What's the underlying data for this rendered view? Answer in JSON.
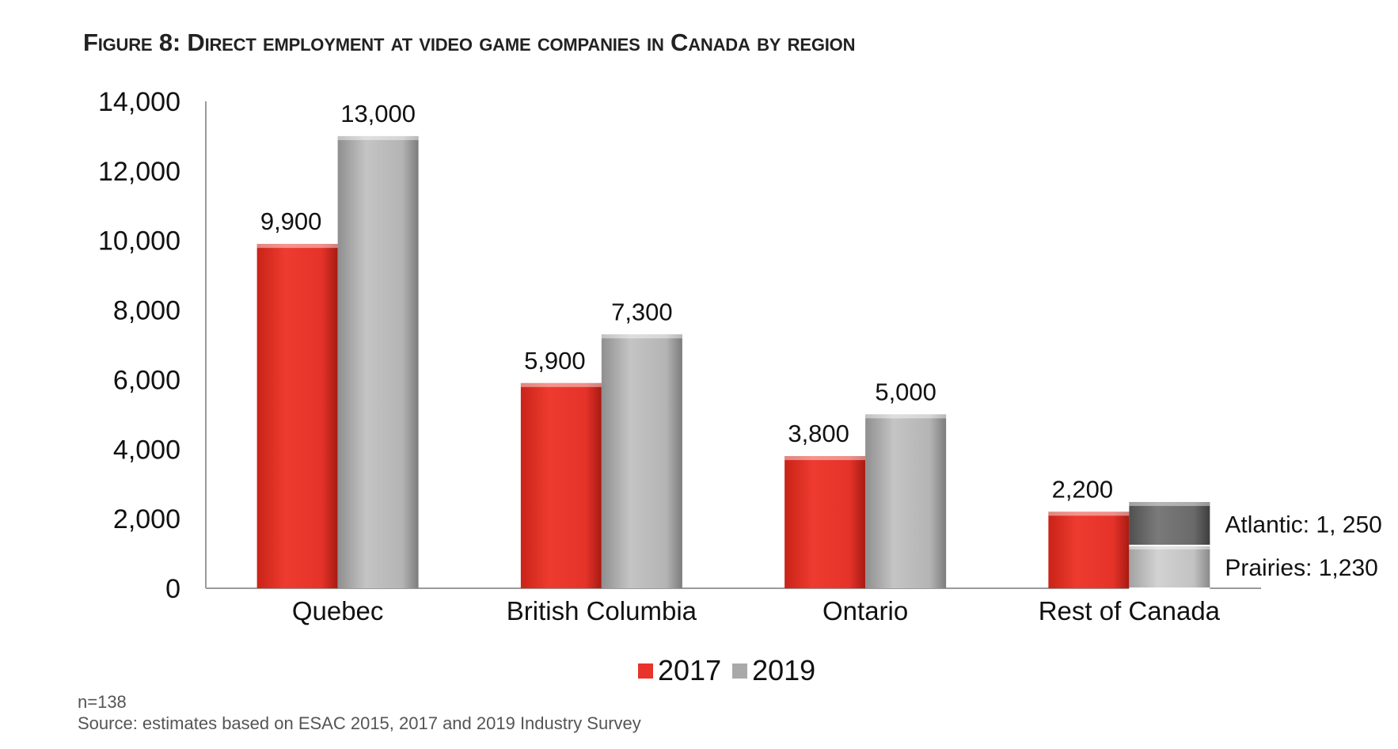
{
  "title": "Figure 8: Direct employment at video game companies in Canada by region",
  "chart_data": {
    "type": "bar",
    "stacked_last_category": true,
    "categories": [
      "Quebec",
      "British Columbia",
      "Ontario",
      "Rest of Canada"
    ],
    "series": [
      {
        "name": "2017",
        "values": [
          9900,
          5900,
          3800,
          2200
        ],
        "labels": [
          "9,900",
          "5,900",
          "3,800",
          "2,200"
        ],
        "color": "#e8342a"
      },
      {
        "name": "2019",
        "values": [
          13000,
          7300,
          5000,
          null
        ],
        "labels": [
          "13,000",
          "7,300",
          "5,000",
          ""
        ],
        "color": "#a9a9a9"
      }
    ],
    "rest_of_canada_2019_breakdown": [
      {
        "label": "Prairies: 1,230",
        "value": 1230,
        "color": "#b8b8b8"
      },
      {
        "label": "Atlantic: 1, 250",
        "value": 1250,
        "color": "#666666"
      }
    ],
    "y_ticks": [
      "0",
      "2,000",
      "4,000",
      "6,000",
      "8,000",
      "10,000",
      "12,000",
      "14,000"
    ],
    "ylim": [
      0,
      14000
    ],
    "legend_position": "bottom",
    "grid": false
  },
  "legend": [
    {
      "label": "2017",
      "color": "#e8342a"
    },
    {
      "label": "2019",
      "color": "#a9a9a9"
    }
  ],
  "notes": {
    "n": "n=138",
    "source": "Source: estimates based on ESAC 2015, 2017 and 2019 Industry Survey"
  }
}
